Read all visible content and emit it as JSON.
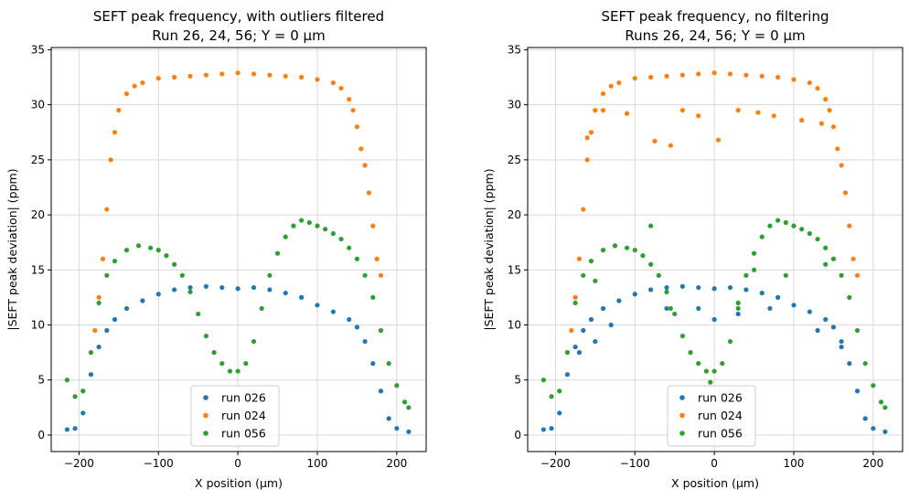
{
  "chart_data": [
    {
      "type": "scatter",
      "title": "SEFT peak frequency, with outliers filtered",
      "subtitle": "Run 26, 24, 56; Y = 0 µm",
      "xlabel": "X position (µm)",
      "ylabel": "|SEFT peak deviation| (ppm)",
      "xlim": [
        -235,
        237
      ],
      "ylim": [
        -1.5,
        35.2
      ],
      "xticks": [
        -200,
        -100,
        0,
        100,
        200
      ],
      "xtick_labels": [
        "−200",
        "−100",
        "0",
        "100",
        "200"
      ],
      "yticks": [
        0,
        5,
        10,
        15,
        20,
        25,
        30,
        35
      ],
      "ytick_labels": [
        "0",
        "5",
        "10",
        "15",
        "20",
        "25",
        "30",
        "35"
      ],
      "grid": true,
      "legend_position": "lower-center",
      "series": [
        {
          "name": "run 026",
          "color": "#1f77b4",
          "x": [
            -215,
            -205,
            -195,
            -185,
            -175,
            -165,
            -155,
            -140,
            -120,
            -100,
            -80,
            -60,
            -40,
            -20,
            0,
            20,
            40,
            60,
            80,
            100,
            120,
            140,
            150,
            160,
            170,
            180,
            190,
            200,
            215
          ],
          "y": [
            0.5,
            0.6,
            2.0,
            5.5,
            8.0,
            9.5,
            10.5,
            11.5,
            12.2,
            12.8,
            13.2,
            13.4,
            13.5,
            13.4,
            13.3,
            13.4,
            13.2,
            12.9,
            12.5,
            11.8,
            11.2,
            10.5,
            9.8,
            8.5,
            6.5,
            4.0,
            1.5,
            0.6,
            0.3
          ]
        },
        {
          "name": "run 024",
          "color": "#ff7f0e",
          "x": [
            -180,
            -175,
            -170,
            -165,
            -160,
            -155,
            -150,
            -140,
            -130,
            -120,
            -100,
            -80,
            -60,
            -40,
            -20,
            0,
            20,
            40,
            60,
            80,
            100,
            120,
            130,
            140,
            145,
            150,
            155,
            160,
            165,
            170,
            175,
            180
          ],
          "y": [
            9.5,
            12.5,
            16.0,
            20.5,
            25.0,
            27.5,
            29.5,
            31.0,
            31.7,
            32.0,
            32.4,
            32.5,
            32.6,
            32.7,
            32.8,
            32.9,
            32.8,
            32.7,
            32.6,
            32.5,
            32.3,
            32.0,
            31.5,
            30.5,
            29.5,
            28.0,
            26.0,
            24.5,
            22.0,
            19.0,
            16.0,
            14.5
          ]
        },
        {
          "name": "run 056",
          "color": "#2ca02c",
          "x": [
            -215,
            -205,
            -195,
            -185,
            -175,
            -165,
            -155,
            -140,
            -125,
            -110,
            -100,
            -90,
            -80,
            -70,
            -60,
            -50,
            -40,
            -30,
            -20,
            -10,
            0,
            10,
            20,
            30,
            40,
            50,
            60,
            70,
            80,
            90,
            100,
            110,
            120,
            130,
            140,
            150,
            160,
            170,
            180,
            190,
            200,
            210,
            215
          ],
          "y": [
            5.0,
            3.5,
            4.0,
            7.5,
            12.0,
            14.5,
            15.8,
            16.8,
            17.2,
            17.0,
            16.8,
            16.3,
            15.5,
            14.5,
            13.0,
            11.0,
            9.0,
            7.5,
            6.5,
            5.8,
            5.8,
            6.5,
            8.5,
            11.5,
            14.5,
            16.5,
            18.0,
            19.0,
            19.5,
            19.3,
            19.0,
            18.7,
            18.3,
            17.8,
            17.0,
            16.0,
            14.5,
            12.5,
            9.5,
            6.5,
            4.5,
            3.0,
            2.5
          ]
        }
      ]
    },
    {
      "type": "scatter",
      "title": "SEFT peak frequency, no filtering",
      "subtitle": "Runs 26, 24, 56; Y = 0 µm",
      "xlabel": "X position (µm)",
      "ylabel": "|SEFT peak deviation| (ppm)",
      "xlim": [
        -235,
        237
      ],
      "ylim": [
        -1.5,
        35.2
      ],
      "xticks": [
        -200,
        -100,
        0,
        100,
        200
      ],
      "xtick_labels": [
        "−200",
        "−100",
        "0",
        "100",
        "200"
      ],
      "yticks": [
        0,
        5,
        10,
        15,
        20,
        25,
        30,
        35
      ],
      "ytick_labels": [
        "0",
        "5",
        "10",
        "15",
        "20",
        "25",
        "30",
        "35"
      ],
      "grid": true,
      "legend_position": "lower-center",
      "series": [
        {
          "name": "run 026",
          "color": "#1f77b4",
          "x": [
            -215,
            -205,
            -195,
            -185,
            -175,
            -165,
            -155,
            -140,
            -120,
            -100,
            -80,
            -60,
            -40,
            -20,
            0,
            20,
            40,
            60,
            80,
            100,
            120,
            140,
            150,
            160,
            170,
            180,
            190,
            200,
            215,
            -170,
            -150,
            -130,
            -60,
            -20,
            0,
            30,
            70,
            130,
            160
          ],
          "y": [
            0.5,
            0.6,
            2.0,
            5.5,
            8.0,
            9.5,
            10.5,
            11.5,
            12.2,
            12.8,
            13.2,
            13.4,
            13.5,
            13.4,
            13.3,
            13.4,
            13.2,
            12.9,
            12.5,
            11.8,
            11.2,
            10.5,
            9.8,
            8.5,
            6.5,
            4.0,
            1.5,
            0.6,
            0.3,
            7.5,
            8.5,
            10.0,
            11.5,
            11.5,
            10.5,
            11.0,
            11.5,
            9.5,
            8.0
          ]
        },
        {
          "name": "run 024",
          "color": "#ff7f0e",
          "x": [
            -180,
            -175,
            -170,
            -165,
            -160,
            -155,
            -150,
            -140,
            -130,
            -120,
            -100,
            -80,
            -60,
            -40,
            -20,
            0,
            20,
            40,
            60,
            80,
            100,
            120,
            130,
            140,
            145,
            150,
            155,
            160,
            165,
            170,
            175,
            180,
            -160,
            -140,
            -110,
            -75,
            -55,
            -40,
            -20,
            5,
            30,
            55,
            75,
            110,
            135
          ],
          "y": [
            9.5,
            12.5,
            16.0,
            20.5,
            25.0,
            27.5,
            29.5,
            31.0,
            31.7,
            32.0,
            32.4,
            32.5,
            32.6,
            32.7,
            32.8,
            32.9,
            32.8,
            32.7,
            32.6,
            32.5,
            32.3,
            32.0,
            31.5,
            30.5,
            29.5,
            28.0,
            26.0,
            24.5,
            22.0,
            19.0,
            16.0,
            14.5,
            27.0,
            29.5,
            29.2,
            26.7,
            26.3,
            29.5,
            29.0,
            26.8,
            29.5,
            29.3,
            29.0,
            28.6,
            28.3
          ]
        },
        {
          "name": "run 056",
          "color": "#2ca02c",
          "x": [
            -215,
            -205,
            -195,
            -185,
            -175,
            -165,
            -155,
            -140,
            -125,
            -110,
            -100,
            -90,
            -80,
            -70,
            -60,
            -50,
            -40,
            -30,
            -20,
            -10,
            0,
            10,
            20,
            30,
            40,
            50,
            60,
            70,
            80,
            90,
            100,
            110,
            120,
            130,
            140,
            150,
            160,
            170,
            180,
            190,
            200,
            210,
            215,
            -150,
            -80,
            -55,
            -5,
            30,
            50,
            90,
            140
          ],
          "y": [
            5.0,
            3.5,
            4.0,
            7.5,
            12.0,
            14.5,
            15.8,
            16.8,
            17.2,
            17.0,
            16.8,
            16.3,
            15.5,
            14.5,
            13.0,
            11.0,
            9.0,
            7.5,
            6.5,
            5.8,
            5.8,
            6.5,
            8.5,
            11.5,
            14.5,
            16.5,
            18.0,
            19.0,
            19.5,
            19.3,
            19.0,
            18.7,
            18.3,
            17.8,
            17.0,
            16.0,
            14.5,
            12.5,
            9.5,
            6.5,
            4.5,
            3.0,
            2.5,
            14.0,
            19.0,
            11.5,
            4.8,
            12.0,
            15.0,
            14.5,
            15.5
          ]
        }
      ]
    }
  ]
}
